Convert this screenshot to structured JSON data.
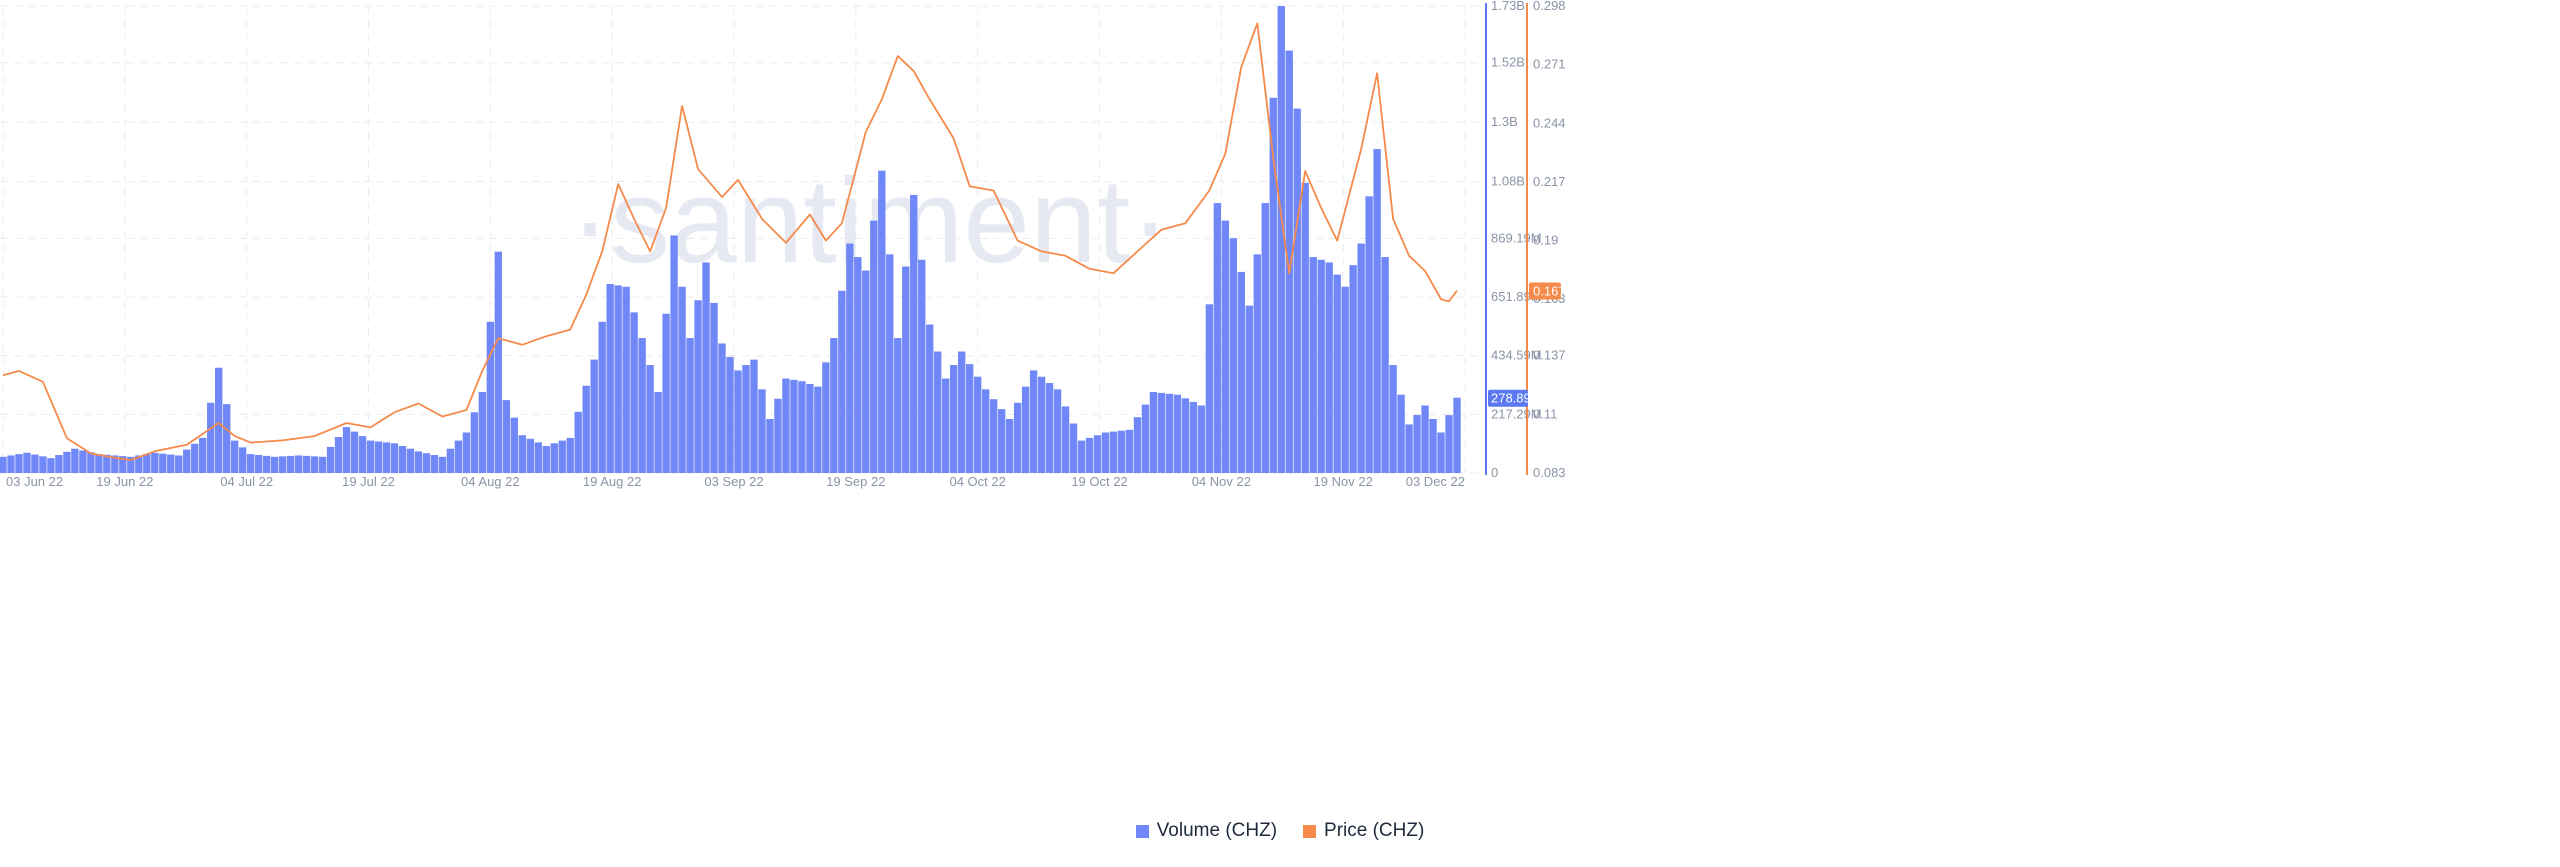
{
  "chart_data": {
    "type": "bar+line",
    "watermark": "·santiment·",
    "x_labels": [
      "03 Jun 22",
      "19 Jun 22",
      "04 Jul 22",
      "19 Jul 22",
      "04 Aug 22",
      "19 Aug 22",
      "03 Sep 22",
      "19 Sep 22",
      "04 Oct 22",
      "19 Oct 22",
      "04 Nov 22",
      "19 Nov 22",
      "03 Dec 22"
    ],
    "x_range": [
      "2022-06-03",
      "2022-12-03"
    ],
    "volume_axis": {
      "ticks": [
        "1.73B",
        "1.52B",
        "1.3B",
        "1.08B",
        "869.19M",
        "651.89M",
        "434.59M",
        "217.29M",
        "0"
      ],
      "tick_values": [
        1730000000,
        1520000000,
        1300000000,
        1080000000,
        869190000,
        651890000,
        434590000,
        217290000,
        0
      ],
      "range": [
        0,
        1730000000
      ]
    },
    "price_axis": {
      "ticks": [
        "0.298",
        "0.271",
        "0.244",
        "0.217",
        "0.19",
        "0.163",
        "0.137",
        "0.11",
        "0.083"
      ],
      "tick_values": [
        0.298,
        0.271,
        0.244,
        0.217,
        0.19,
        0.163,
        0.137,
        0.11,
        0.083
      ],
      "range": [
        0.083,
        0.298
      ]
    },
    "last_values": {
      "volume": "278.89M",
      "price": "0.167"
    },
    "grid": true,
    "legend_position": "bottom-center",
    "colors": {
      "volume": "#6f87f7",
      "volume_axis": "#5a78f0",
      "price": "#f58a4b",
      "grid": "#e9ecf2"
    },
    "series": [
      {
        "name": "Volume (CHZ)",
        "kind": "bar",
        "axis": "volume",
        "points": [
          [
            "2022-06-03",
            60000000
          ],
          [
            "2022-06-06",
            75000000
          ],
          [
            "2022-06-09",
            55000000
          ],
          [
            "2022-06-12",
            90000000
          ],
          [
            "2022-06-15",
            70000000
          ],
          [
            "2022-06-19",
            60000000
          ],
          [
            "2022-06-22",
            75000000
          ],
          [
            "2022-06-25",
            65000000
          ],
          [
            "2022-06-28",
            130000000
          ],
          [
            "2022-06-30",
            390000000
          ],
          [
            "2022-07-02",
            120000000
          ],
          [
            "2022-07-04",
            70000000
          ],
          [
            "2022-07-07",
            60000000
          ],
          [
            "2022-07-10",
            65000000
          ],
          [
            "2022-07-13",
            60000000
          ],
          [
            "2022-07-16",
            170000000
          ],
          [
            "2022-07-19",
            120000000
          ],
          [
            "2022-07-22",
            110000000
          ],
          [
            "2022-07-25",
            80000000
          ],
          [
            "2022-07-28",
            60000000
          ],
          [
            "2022-07-31",
            150000000
          ],
          [
            "2022-08-02",
            300000000
          ],
          [
            "2022-08-04",
            820000000
          ],
          [
            "2022-08-05",
            270000000
          ],
          [
            "2022-08-07",
            140000000
          ],
          [
            "2022-08-10",
            100000000
          ],
          [
            "2022-08-13",
            130000000
          ],
          [
            "2022-08-16",
            420000000
          ],
          [
            "2022-08-18",
            700000000
          ],
          [
            "2022-08-20",
            690000000
          ],
          [
            "2022-08-22",
            500000000
          ],
          [
            "2022-08-24",
            300000000
          ],
          [
            "2022-08-26",
            880000000
          ],
          [
            "2022-08-28",
            500000000
          ],
          [
            "2022-08-30",
            780000000
          ],
          [
            "2022-09-01",
            480000000
          ],
          [
            "2022-09-03",
            380000000
          ],
          [
            "2022-09-05",
            420000000
          ],
          [
            "2022-09-07",
            200000000
          ],
          [
            "2022-09-09",
            350000000
          ],
          [
            "2022-09-11",
            340000000
          ],
          [
            "2022-09-13",
            320000000
          ],
          [
            "2022-09-15",
            500000000
          ],
          [
            "2022-09-17",
            850000000
          ],
          [
            "2022-09-19",
            750000000
          ],
          [
            "2022-09-21",
            1120000000
          ],
          [
            "2022-09-23",
            500000000
          ],
          [
            "2022-09-25",
            1030000000
          ],
          [
            "2022-09-27",
            550000000
          ],
          [
            "2022-09-29",
            350000000
          ],
          [
            "2022-10-01",
            450000000
          ],
          [
            "2022-10-04",
            310000000
          ],
          [
            "2022-10-07",
            200000000
          ],
          [
            "2022-10-10",
            380000000
          ],
          [
            "2022-10-13",
            310000000
          ],
          [
            "2022-10-16",
            120000000
          ],
          [
            "2022-10-19",
            150000000
          ],
          [
            "2022-10-22",
            160000000
          ],
          [
            "2022-10-25",
            300000000
          ],
          [
            "2022-10-28",
            290000000
          ],
          [
            "2022-10-31",
            250000000
          ],
          [
            "2022-11-02",
            1000000000
          ],
          [
            "2022-11-04",
            870000000
          ],
          [
            "2022-11-06",
            620000000
          ],
          [
            "2022-11-08",
            1000000000
          ],
          [
            "2022-11-10",
            1780000000
          ],
          [
            "2022-11-12",
            1350000000
          ],
          [
            "2022-11-14",
            800000000
          ],
          [
            "2022-11-16",
            780000000
          ],
          [
            "2022-11-18",
            690000000
          ],
          [
            "2022-11-20",
            850000000
          ],
          [
            "2022-11-22",
            1200000000
          ],
          [
            "2022-11-24",
            400000000
          ],
          [
            "2022-11-26",
            180000000
          ],
          [
            "2022-11-28",
            250000000
          ],
          [
            "2022-11-30",
            150000000
          ],
          [
            "2022-12-02",
            278890000
          ]
        ]
      },
      {
        "name": "Price (CHZ)",
        "kind": "line",
        "axis": "price",
        "points": [
          [
            "2022-06-03",
            0.128
          ],
          [
            "2022-06-05",
            0.13
          ],
          [
            "2022-06-08",
            0.125
          ],
          [
            "2022-06-11",
            0.099
          ],
          [
            "2022-06-14",
            0.092
          ],
          [
            "2022-06-17",
            0.09
          ],
          [
            "2022-06-19",
            0.089
          ],
          [
            "2022-06-22",
            0.093
          ],
          [
            "2022-06-26",
            0.096
          ],
          [
            "2022-06-30",
            0.106
          ],
          [
            "2022-07-02",
            0.1
          ],
          [
            "2022-07-04",
            0.097
          ],
          [
            "2022-07-08",
            0.098
          ],
          [
            "2022-07-12",
            0.1
          ],
          [
            "2022-07-16",
            0.106
          ],
          [
            "2022-07-19",
            0.104
          ],
          [
            "2022-07-22",
            0.111
          ],
          [
            "2022-07-25",
            0.115
          ],
          [
            "2022-07-28",
            0.109
          ],
          [
            "2022-07-31",
            0.112
          ],
          [
            "2022-08-02",
            0.13
          ],
          [
            "2022-08-04",
            0.145
          ],
          [
            "2022-08-07",
            0.142
          ],
          [
            "2022-08-10",
            0.146
          ],
          [
            "2022-08-13",
            0.149
          ],
          [
            "2022-08-15",
            0.165
          ],
          [
            "2022-08-17",
            0.185
          ],
          [
            "2022-08-19",
            0.216
          ],
          [
            "2022-08-21",
            0.2
          ],
          [
            "2022-08-23",
            0.185
          ],
          [
            "2022-08-25",
            0.205
          ],
          [
            "2022-08-27",
            0.252
          ],
          [
            "2022-08-29",
            0.223
          ],
          [
            "2022-09-01",
            0.21
          ],
          [
            "2022-09-03",
            0.218
          ],
          [
            "2022-09-06",
            0.2
          ],
          [
            "2022-09-09",
            0.189
          ],
          [
            "2022-09-12",
            0.202
          ],
          [
            "2022-09-14",
            0.19
          ],
          [
            "2022-09-16",
            0.198
          ],
          [
            "2022-09-19",
            0.24
          ],
          [
            "2022-09-21",
            0.255
          ],
          [
            "2022-09-23",
            0.275
          ],
          [
            "2022-09-25",
            0.268
          ],
          [
            "2022-09-27",
            0.255
          ],
          [
            "2022-09-30",
            0.237
          ],
          [
            "2022-10-02",
            0.215
          ],
          [
            "2022-10-05",
            0.213
          ],
          [
            "2022-10-08",
            0.19
          ],
          [
            "2022-10-11",
            0.185
          ],
          [
            "2022-10-14",
            0.183
          ],
          [
            "2022-10-17",
            0.177
          ],
          [
            "2022-10-20",
            0.175
          ],
          [
            "2022-10-23",
            0.185
          ],
          [
            "2022-10-26",
            0.195
          ],
          [
            "2022-10-29",
            0.198
          ],
          [
            "2022-11-01",
            0.213
          ],
          [
            "2022-11-03",
            0.23
          ],
          [
            "2022-11-05",
            0.27
          ],
          [
            "2022-11-07",
            0.29
          ],
          [
            "2022-11-09",
            0.228
          ],
          [
            "2022-11-11",
            0.175
          ],
          [
            "2022-11-13",
            0.222
          ],
          [
            "2022-11-15",
            0.205
          ],
          [
            "2022-11-17",
            0.19
          ],
          [
            "2022-11-20",
            0.232
          ],
          [
            "2022-11-22",
            0.267
          ],
          [
            "2022-11-24",
            0.2
          ],
          [
            "2022-11-26",
            0.183
          ],
          [
            "2022-11-28",
            0.176
          ],
          [
            "2022-11-30",
            0.163
          ],
          [
            "2022-12-01",
            0.162
          ],
          [
            "2022-12-02",
            0.167
          ]
        ]
      }
    ]
  }
}
